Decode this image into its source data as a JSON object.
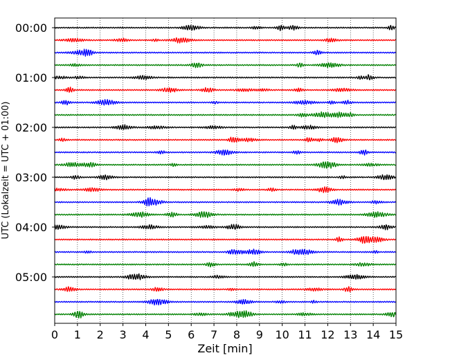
{
  "chart_data": {
    "type": "line",
    "title": "",
    "xlabel": "Zeit  [min]",
    "ylabel": "UTC (Lokalzeit = UTC + 01:00)",
    "xlim": [
      0,
      15
    ],
    "x_ticks": [
      "0",
      "1",
      "2",
      "3",
      "4",
      "5",
      "6",
      "7",
      "8",
      "9",
      "10",
      "11",
      "12",
      "13",
      "14",
      "15"
    ],
    "y_ticks": [
      "00:00",
      "01:00",
      "02:00",
      "03:00",
      "04:00",
      "05:00"
    ],
    "grid": "vertical dotted",
    "trace_interval_min": 15,
    "colors": [
      "#000000",
      "#ff0000",
      "#0000ff",
      "#008000"
    ],
    "series": [
      {
        "start": "00:00",
        "color": "#000000"
      },
      {
        "start": "00:15",
        "color": "#ff0000"
      },
      {
        "start": "00:30",
        "color": "#0000ff"
      },
      {
        "start": "00:45",
        "color": "#008000"
      },
      {
        "start": "01:00",
        "color": "#000000"
      },
      {
        "start": "01:15",
        "color": "#ff0000"
      },
      {
        "start": "01:30",
        "color": "#0000ff"
      },
      {
        "start": "01:45",
        "color": "#008000"
      },
      {
        "start": "02:00",
        "color": "#000000"
      },
      {
        "start": "02:15",
        "color": "#ff0000"
      },
      {
        "start": "02:30",
        "color": "#0000ff"
      },
      {
        "start": "02:45",
        "color": "#008000"
      },
      {
        "start": "03:00",
        "color": "#000000"
      },
      {
        "start": "03:15",
        "color": "#ff0000"
      },
      {
        "start": "03:30",
        "color": "#0000ff"
      },
      {
        "start": "03:45",
        "color": "#008000"
      },
      {
        "start": "04:00",
        "color": "#000000"
      },
      {
        "start": "04:15",
        "color": "#ff0000"
      },
      {
        "start": "04:30",
        "color": "#0000ff"
      },
      {
        "start": "04:45",
        "color": "#008000"
      },
      {
        "start": "05:00",
        "color": "#000000"
      },
      {
        "start": "05:15",
        "color": "#ff0000"
      },
      {
        "start": "05:30",
        "color": "#0000ff"
      },
      {
        "start": "05:45",
        "color": "#008000"
      }
    ]
  }
}
